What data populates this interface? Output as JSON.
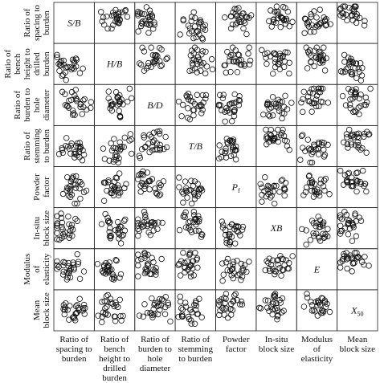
{
  "chart_data": {
    "type": "scatter_matrix",
    "variables": [
      {
        "lines": [
          "Ratio of",
          "spacing to",
          "burden"
        ],
        "symbol": "S/B"
      },
      {
        "lines": [
          "Ratio of",
          "bench",
          "height to",
          "drilled",
          "burden"
        ],
        "symbol": "H/B"
      },
      {
        "lines": [
          "Ratio of",
          "burden to",
          "hole",
          "diameter"
        ],
        "symbol": "B/D"
      },
      {
        "lines": [
          "Ratio of",
          "stemming",
          "to burden"
        ],
        "symbol": "T/B"
      },
      {
        "lines": [
          "Powder",
          "factor"
        ],
        "symbol": "P",
        "sub": "f"
      },
      {
        "lines": [
          "In-situ",
          "block size"
        ],
        "symbol": "XB"
      },
      {
        "lines": [
          "Modulus",
          "of",
          "elasticity"
        ],
        "symbol": "E"
      },
      {
        "lines": [
          "Mean",
          "block size"
        ],
        "symbol": "X",
        "sub": "50"
      }
    ]
  }
}
